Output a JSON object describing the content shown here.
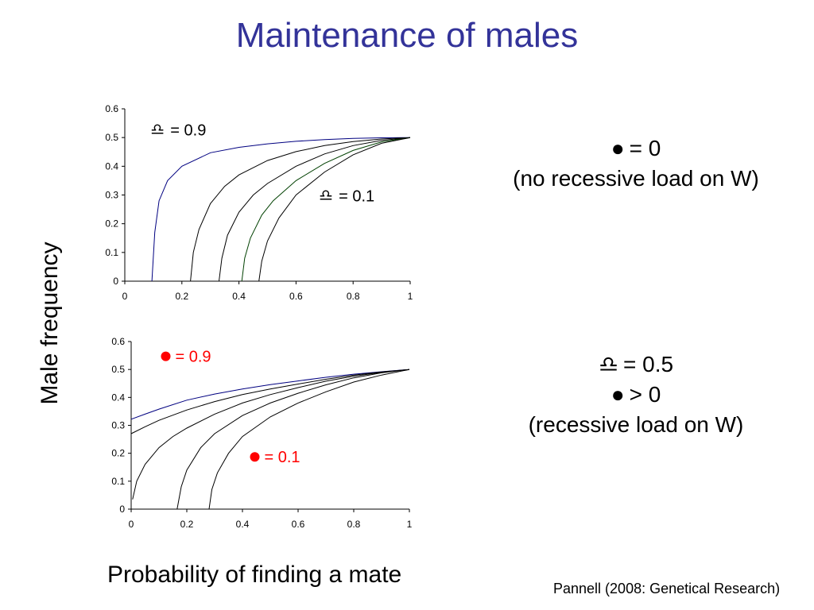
{
  "title": "Maintenance of males",
  "ylabel": "Male frequency",
  "xlabel": "Probability of finding a mate",
  "citation": "Pannell (2008: Genetical Research)",
  "notes": {
    "top": {
      "line1_symbol": "●",
      "line1_text": "= 0",
      "line2": "(no recessive load on W)"
    },
    "bottom": {
      "line1_symbol": "♎",
      "line1_text": "= 0.5",
      "line2_symbol": "●",
      "line2_text": "> 0",
      "line3": "(recessive load on W)"
    }
  },
  "colors": {
    "title": "#333399",
    "curve_dark": "#000000",
    "curve_blue": "#000080",
    "curve_green": "#004000",
    "annotation_red": "#ff0000"
  },
  "chart_data": [
    {
      "type": "line",
      "xlim": [
        0,
        1
      ],
      "ylim": [
        0,
        0.6
      ],
      "xticks": [
        "0",
        "0.2",
        "0.4",
        "0.6",
        "0.8",
        "1"
      ],
      "yticks": [
        "0",
        "0.1",
        "0.2",
        "0.3",
        "0.4",
        "0.5",
        "0.6"
      ],
      "grid": false,
      "annotations": [
        {
          "symbol": "♎",
          "text": "= 0.9",
          "color": "#000000",
          "x": 0.09,
          "y": 0.51
        },
        {
          "symbol": "♎",
          "text": "= 0.1",
          "color": "#000000",
          "x": 0.68,
          "y": 0.28
        }
      ],
      "series": [
        {
          "color": "#000080",
          "x": [
            0.095,
            0.105,
            0.12,
            0.15,
            0.2,
            0.3,
            0.4,
            0.5,
            0.6,
            0.7,
            0.8,
            0.9,
            1.0
          ],
          "y": [
            0.0,
            0.17,
            0.28,
            0.35,
            0.4,
            0.447,
            0.466,
            0.478,
            0.487,
            0.493,
            0.497,
            0.499,
            0.5
          ]
        },
        {
          "color": "#000000",
          "x": [
            0.23,
            0.24,
            0.26,
            0.3,
            0.35,
            0.4,
            0.5,
            0.6,
            0.7,
            0.8,
            0.9,
            1.0
          ],
          "y": [
            0.0,
            0.1,
            0.18,
            0.27,
            0.33,
            0.37,
            0.42,
            0.451,
            0.472,
            0.486,
            0.495,
            0.5
          ]
        },
        {
          "color": "#000000",
          "x": [
            0.33,
            0.34,
            0.36,
            0.4,
            0.45,
            0.5,
            0.6,
            0.7,
            0.8,
            0.9,
            1.0
          ],
          "y": [
            0.0,
            0.08,
            0.16,
            0.24,
            0.3,
            0.34,
            0.4,
            0.443,
            0.472,
            0.49,
            0.5
          ]
        },
        {
          "color": "#004000",
          "x": [
            0.41,
            0.42,
            0.44,
            0.48,
            0.52,
            0.6,
            0.7,
            0.8,
            0.9,
            1.0
          ],
          "y": [
            0.0,
            0.08,
            0.15,
            0.23,
            0.28,
            0.35,
            0.41,
            0.455,
            0.485,
            0.5
          ]
        },
        {
          "color": "#000000",
          "x": [
            0.47,
            0.48,
            0.5,
            0.54,
            0.6,
            0.7,
            0.8,
            0.9,
            1.0
          ],
          "y": [
            0.0,
            0.07,
            0.14,
            0.22,
            0.3,
            0.38,
            0.44,
            0.48,
            0.5
          ]
        }
      ]
    },
    {
      "type": "line",
      "xlim": [
        0,
        1
      ],
      "ylim": [
        0,
        0.6
      ],
      "xticks": [
        "0",
        "0.2",
        "0.4",
        "0.6",
        "0.8",
        "1"
      ],
      "yticks": [
        "0",
        "0.1",
        "0.2",
        "0.3",
        "0.4",
        "0.5",
        "0.6"
      ],
      "grid": false,
      "annotations": [
        {
          "symbol": "●",
          "text": "= 0.9",
          "color": "#ff0000",
          "x": 0.11,
          "y": 0.53
        },
        {
          "symbol": "●",
          "text": "= 0.1",
          "color": "#ff0000",
          "x": 0.43,
          "y": 0.17
        }
      ],
      "series": [
        {
          "color": "#000080",
          "x": [
            0.0,
            0.05,
            0.1,
            0.2,
            0.3,
            0.4,
            0.5,
            0.6,
            0.7,
            0.8,
            0.9,
            1.0
          ],
          "y": [
            0.322,
            0.34,
            0.358,
            0.39,
            0.412,
            0.43,
            0.446,
            0.459,
            0.472,
            0.483,
            0.492,
            0.5
          ]
        },
        {
          "color": "#000000",
          "x": [
            0.0,
            0.05,
            0.1,
            0.2,
            0.3,
            0.4,
            0.5,
            0.6,
            0.7,
            0.8,
            0.9,
            1.0
          ],
          "y": [
            0.27,
            0.295,
            0.318,
            0.355,
            0.385,
            0.41,
            0.43,
            0.448,
            0.465,
            0.48,
            0.491,
            0.5
          ]
        },
        {
          "color": "#000000",
          "x": [
            0.005,
            0.02,
            0.05,
            0.1,
            0.15,
            0.2,
            0.3,
            0.4,
            0.5,
            0.6,
            0.7,
            0.8,
            0.9,
            1.0
          ],
          "y": [
            0.035,
            0.1,
            0.16,
            0.22,
            0.26,
            0.29,
            0.34,
            0.38,
            0.41,
            0.435,
            0.458,
            0.476,
            0.49,
            0.5
          ]
        },
        {
          "color": "#000000",
          "x": [
            0.165,
            0.18,
            0.2,
            0.25,
            0.3,
            0.4,
            0.5,
            0.6,
            0.7,
            0.8,
            0.9,
            1.0
          ],
          "y": [
            0.0,
            0.08,
            0.14,
            0.22,
            0.27,
            0.335,
            0.38,
            0.415,
            0.445,
            0.47,
            0.488,
            0.5
          ]
        },
        {
          "color": "#000000",
          "x": [
            0.28,
            0.29,
            0.31,
            0.35,
            0.4,
            0.5,
            0.6,
            0.7,
            0.8,
            0.9,
            1.0
          ],
          "y": [
            0.0,
            0.07,
            0.13,
            0.2,
            0.26,
            0.33,
            0.38,
            0.42,
            0.455,
            0.48,
            0.5
          ]
        }
      ]
    }
  ]
}
